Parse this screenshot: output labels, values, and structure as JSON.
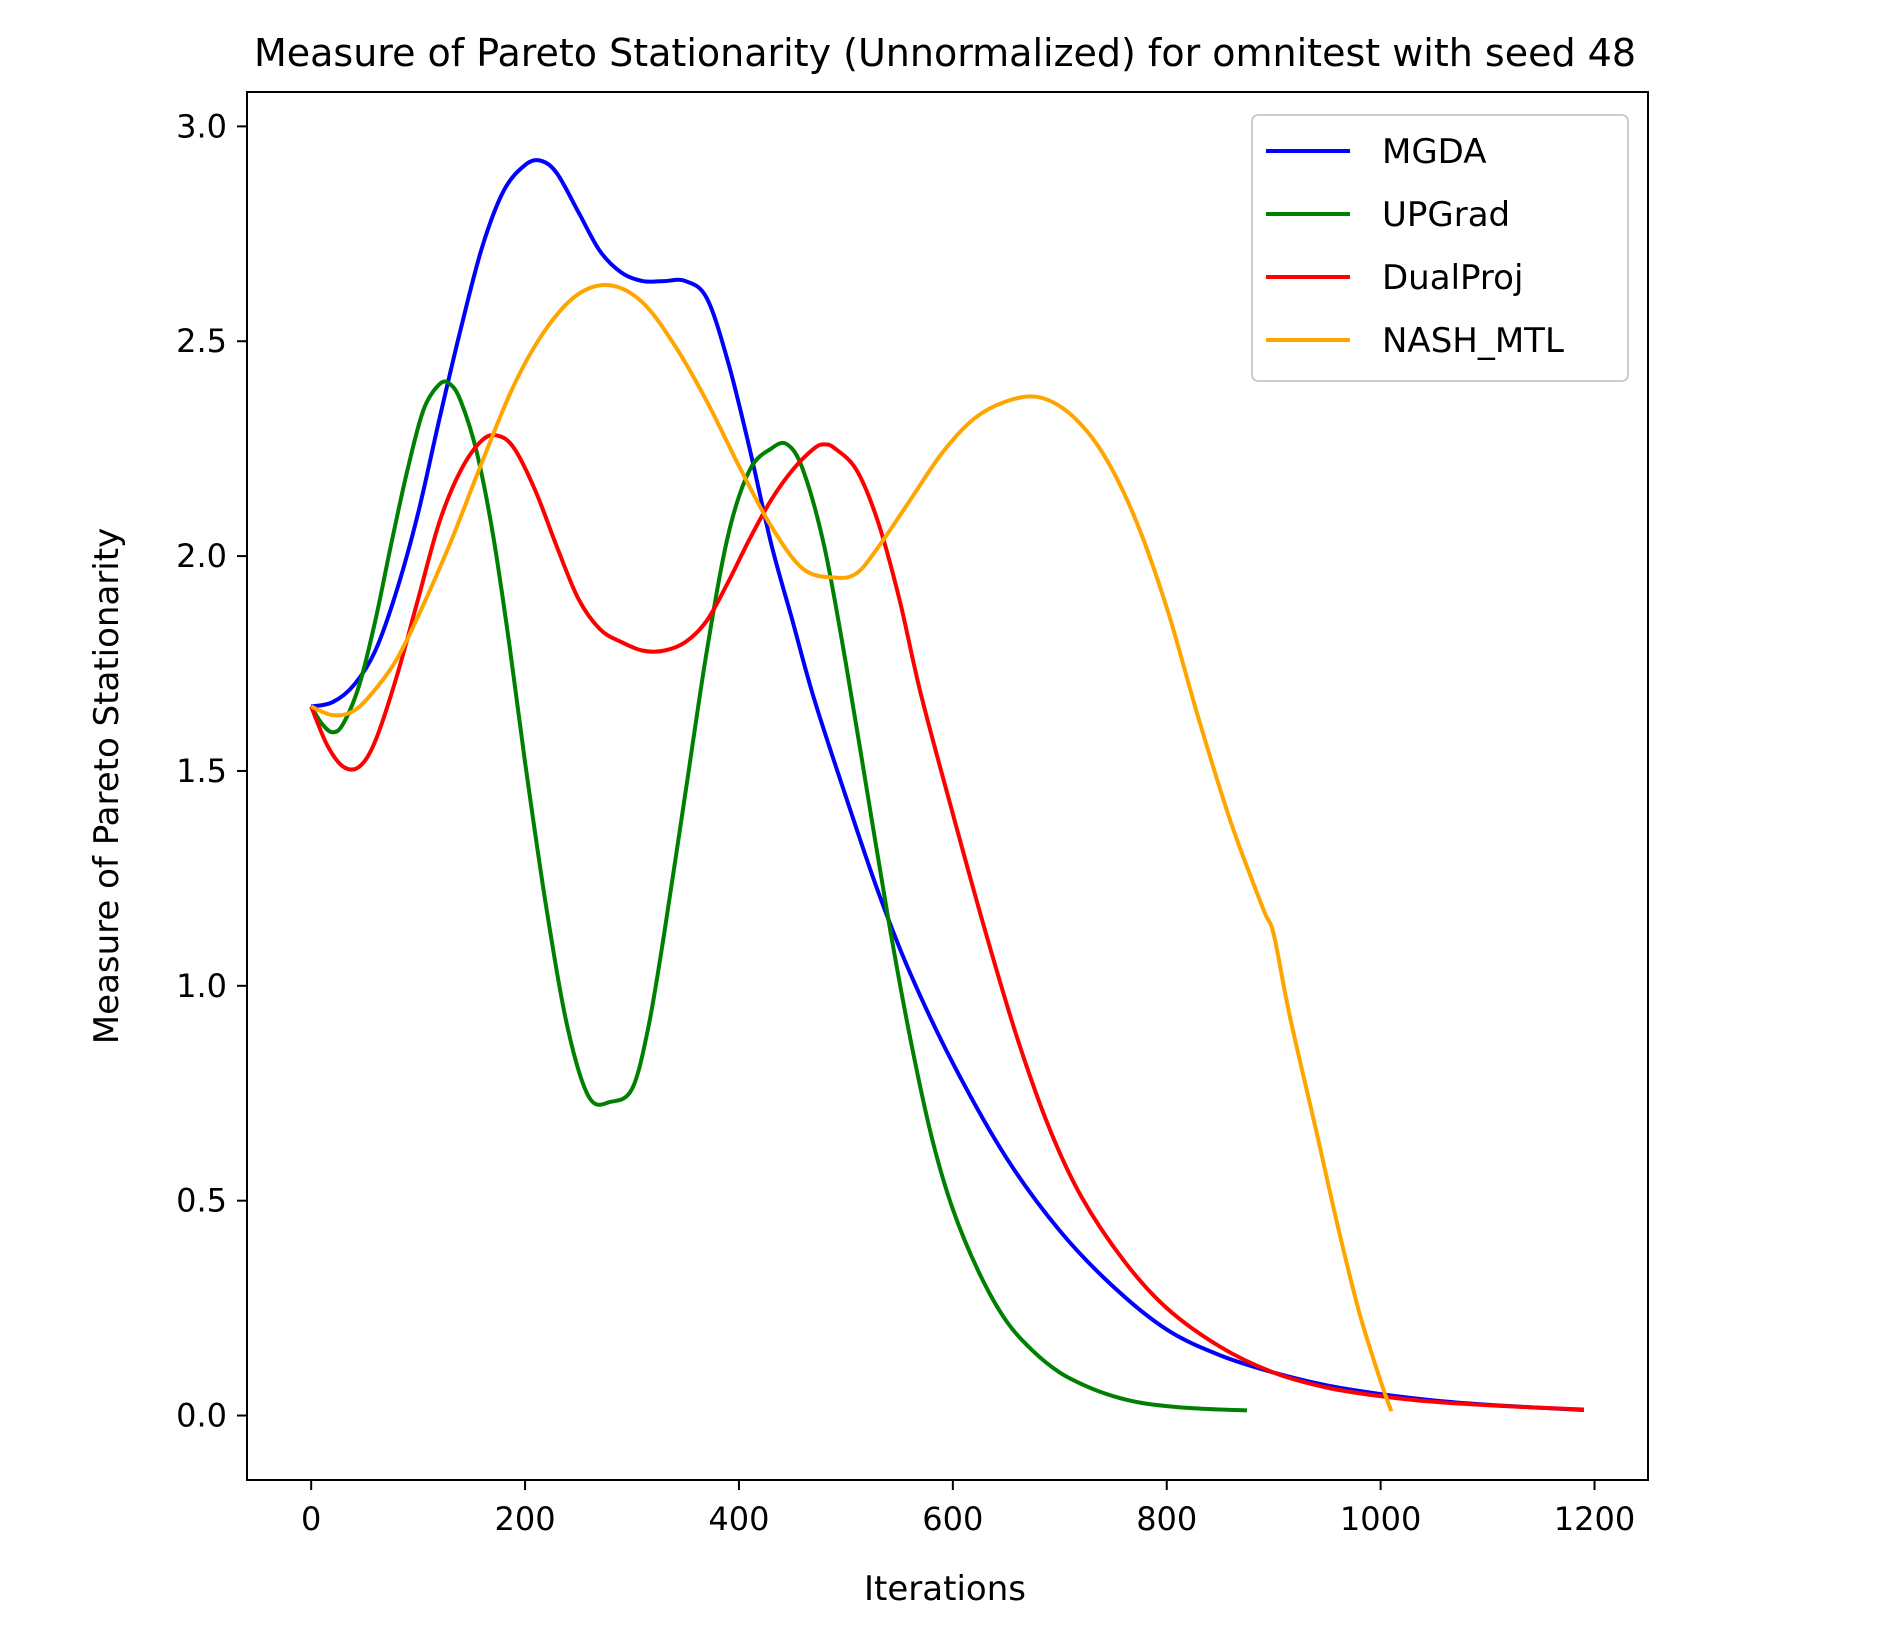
{
  "chart_data": {
    "type": "line",
    "title": "Measure of Pareto Stationarity (Unnormalized) for omnitest with seed 48",
    "xlabel": "Iterations",
    "ylabel": "Measure of Pareto Stationarity",
    "xlim": [
      -60,
      1250
    ],
    "ylim": [
      -0.15,
      3.08
    ],
    "xticks": [
      0,
      200,
      400,
      600,
      800,
      1000,
      1200
    ],
    "xtick_labels": [
      "0",
      "200",
      "400",
      "600",
      "800",
      "1000",
      "1200"
    ],
    "yticks": [
      0.0,
      0.5,
      1.0,
      1.5,
      2.0,
      2.5,
      3.0
    ],
    "ytick_labels": [
      "0.0",
      "0.5",
      "1.0",
      "1.5",
      "2.0",
      "2.5",
      "3.0"
    ],
    "grid": false,
    "legend_position": "top-right",
    "series": [
      {
        "name": "MGDA",
        "color": "#0000ff",
        "x": [
          0,
          20,
          40,
          60,
          80,
          100,
          120,
          140,
          160,
          180,
          200,
          215,
          230,
          250,
          270,
          290,
          310,
          330,
          350,
          370,
          390,
          410,
          430,
          450,
          470,
          500,
          530,
          560,
          600,
          650,
          700,
          750,
          800,
          850,
          900,
          950,
          1000,
          1050,
          1100,
          1150,
          1190
        ],
        "y": [
          1.65,
          1.66,
          1.7,
          1.78,
          1.92,
          2.1,
          2.32,
          2.53,
          2.72,
          2.85,
          2.91,
          2.92,
          2.89,
          2.8,
          2.71,
          2.66,
          2.64,
          2.64,
          2.64,
          2.6,
          2.45,
          2.25,
          2.03,
          1.85,
          1.67,
          1.44,
          1.22,
          1.03,
          0.82,
          0.6,
          0.43,
          0.3,
          0.2,
          0.14,
          0.1,
          0.07,
          0.05,
          0.035,
          0.025,
          0.018,
          0.013
        ]
      },
      {
        "name": "UPGrad",
        "color": "#008000",
        "x": [
          0,
          10,
          20,
          30,
          45,
          60,
          75,
          90,
          105,
          120,
          130,
          140,
          155,
          170,
          185,
          200,
          220,
          240,
          260,
          280,
          300,
          315,
          330,
          350,
          370,
          390,
          410,
          430,
          445,
          460,
          480,
          500,
          520,
          540,
          560,
          580,
          600,
          625,
          650,
          675,
          700,
          725,
          750,
          775,
          800,
          825,
          850,
          875
        ],
        "y": [
          1.65,
          1.61,
          1.59,
          1.61,
          1.7,
          1.85,
          2.03,
          2.2,
          2.34,
          2.4,
          2.4,
          2.36,
          2.24,
          2.05,
          1.8,
          1.52,
          1.18,
          0.9,
          0.74,
          0.73,
          0.76,
          0.9,
          1.12,
          1.45,
          1.78,
          2.05,
          2.2,
          2.25,
          2.26,
          2.2,
          2.02,
          1.75,
          1.45,
          1.15,
          0.88,
          0.65,
          0.48,
          0.33,
          0.22,
          0.15,
          0.1,
          0.068,
          0.045,
          0.03,
          0.022,
          0.017,
          0.014,
          0.012
        ]
      },
      {
        "name": "DualProj",
        "color": "#ff0000",
        "x": [
          0,
          15,
          30,
          45,
          60,
          80,
          100,
          120,
          140,
          160,
          175,
          190,
          210,
          230,
          250,
          270,
          290,
          310,
          330,
          350,
          370,
          390,
          410,
          430,
          450,
          470,
          480,
          490,
          510,
          530,
          550,
          570,
          600,
          630,
          660,
          690,
          720,
          760,
          800,
          850,
          900,
          950,
          1000,
          1050,
          1100,
          1150,
          1190
        ],
        "y": [
          1.65,
          1.56,
          1.51,
          1.51,
          1.57,
          1.72,
          1.9,
          2.08,
          2.2,
          2.27,
          2.28,
          2.25,
          2.15,
          2.02,
          1.9,
          1.83,
          1.8,
          1.78,
          1.78,
          1.8,
          1.85,
          1.94,
          2.04,
          2.13,
          2.2,
          2.25,
          2.26,
          2.25,
          2.2,
          2.08,
          1.9,
          1.68,
          1.4,
          1.13,
          0.88,
          0.67,
          0.51,
          0.36,
          0.25,
          0.16,
          0.1,
          0.065,
          0.045,
          0.032,
          0.024,
          0.018,
          0.014
        ]
      },
      {
        "name": "NASH_MTL",
        "color": "#ffa500",
        "x": [
          0,
          20,
          40,
          60,
          80,
          100,
          130,
          160,
          190,
          220,
          250,
          280,
          310,
          340,
          370,
          400,
          430,
          460,
          490,
          510,
          530,
          560,
          590,
          620,
          650,
          680,
          710,
          740,
          770,
          800,
          830,
          860,
          890,
          900,
          915,
          940,
          960,
          980,
          1000,
          1010
        ],
        "y": [
          1.65,
          1.63,
          1.64,
          1.69,
          1.76,
          1.86,
          2.03,
          2.22,
          2.4,
          2.53,
          2.61,
          2.63,
          2.59,
          2.49,
          2.36,
          2.21,
          2.07,
          1.97,
          1.95,
          1.96,
          2.02,
          2.13,
          2.24,
          2.32,
          2.36,
          2.37,
          2.33,
          2.24,
          2.09,
          1.88,
          1.62,
          1.38,
          1.18,
          1.12,
          0.93,
          0.66,
          0.44,
          0.24,
          0.08,
          0.01
        ]
      }
    ]
  }
}
